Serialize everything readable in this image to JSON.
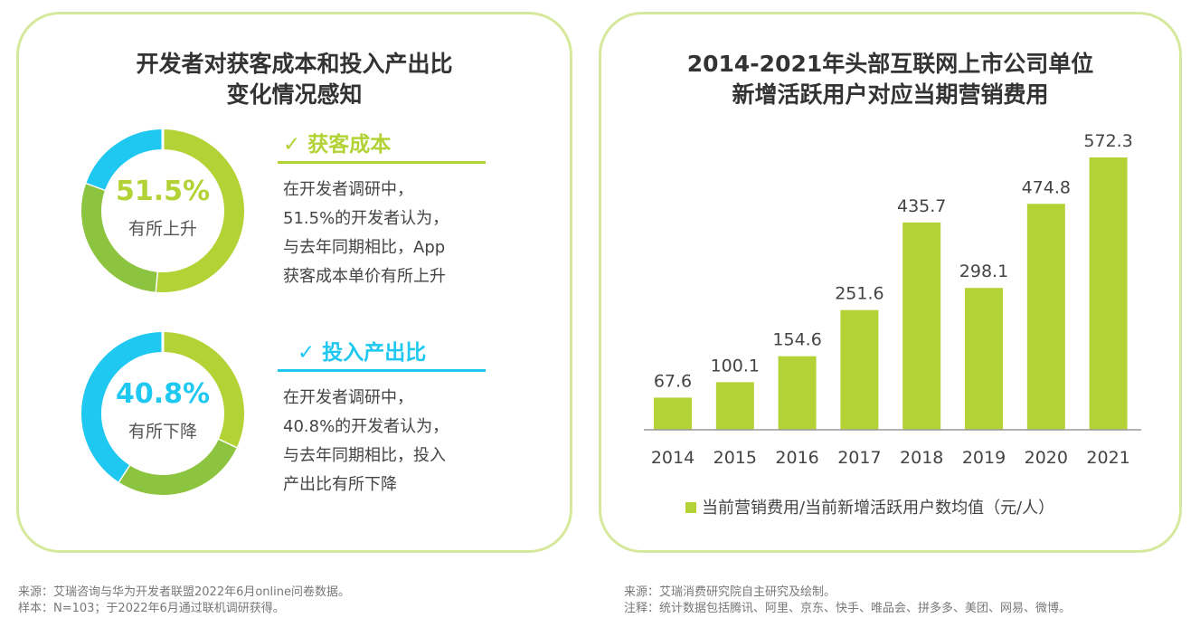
{
  "left": {
    "title_lines": [
      "开发者对获客成本和投入产出比",
      "变化情况感知"
    ],
    "items": [
      {
        "percent": "51.5%",
        "label": "有所上升",
        "heading": "获客成本",
        "check": "✓",
        "color": "#b3d235",
        "desc_lines": [
          "在开发者调研中，",
          "51.5%的开发者认为，",
          "与去年同期相比，App",
          "获客成本单价有所上升"
        ],
        "segments": [
          {
            "value": 51.5,
            "color": "#b3d235"
          },
          {
            "value": 29.1,
            "color": "#8cc43f"
          },
          {
            "value": 19.4,
            "color": "#1fc8f0"
          }
        ]
      },
      {
        "percent": "40.8%",
        "label": "有所下降",
        "heading": "投入产出比",
        "check": "✓",
        "color": "#1fc8f0",
        "desc_lines": [
          "在开发者调研中，",
          "40.8%的开发者认为，",
          "与去年同期相比，投入",
          "产出比有所下降"
        ],
        "segments": [
          {
            "value": 32.0,
            "color": "#b3d235"
          },
          {
            "value": 27.2,
            "color": "#8cc43f"
          },
          {
            "value": 40.8,
            "color": "#1fc8f0"
          }
        ]
      }
    ],
    "source_lines": [
      "来源：艾瑞咨询与华为开发者联盟2022年6月online问卷数据。",
      "样本：N=103；于2022年6月通过联机调研获得。"
    ]
  },
  "chart_data": {
    "type": "bar",
    "title": "2014-2021年头部互联网上市公司单位新增活跃用户对应当期营销费用",
    "title_lines": [
      "2014-2021年头部互联网上市公司单位",
      "新增活跃用户对应当期营销费用"
    ],
    "categories": [
      "2014",
      "2015",
      "2016",
      "2017",
      "2018",
      "2019",
      "2020",
      "2021"
    ],
    "series": [
      {
        "name": "当前营销费用/当前新增活跃用户数均值（元/人）",
        "values": [
          67.6,
          100.1,
          154.6,
          251.6,
          435.7,
          298.1,
          474.8,
          572.3
        ],
        "color": "#b3d235"
      }
    ],
    "value_labels": [
      "67.6",
      "100.1",
      "154.6",
      "251.6",
      "435.7",
      "298.1",
      "474.8",
      "572.3"
    ],
    "ylim": [
      0,
      572.3
    ],
    "grid": false,
    "legend": "bottom"
  },
  "right": {
    "source_lines": [
      "来源：艾瑞消费研究院自主研究及绘制。",
      "注释：统计数据包括腾讯、阿里、京东、快手、唯品会、拼多多、美团、网易、微博。"
    ]
  }
}
